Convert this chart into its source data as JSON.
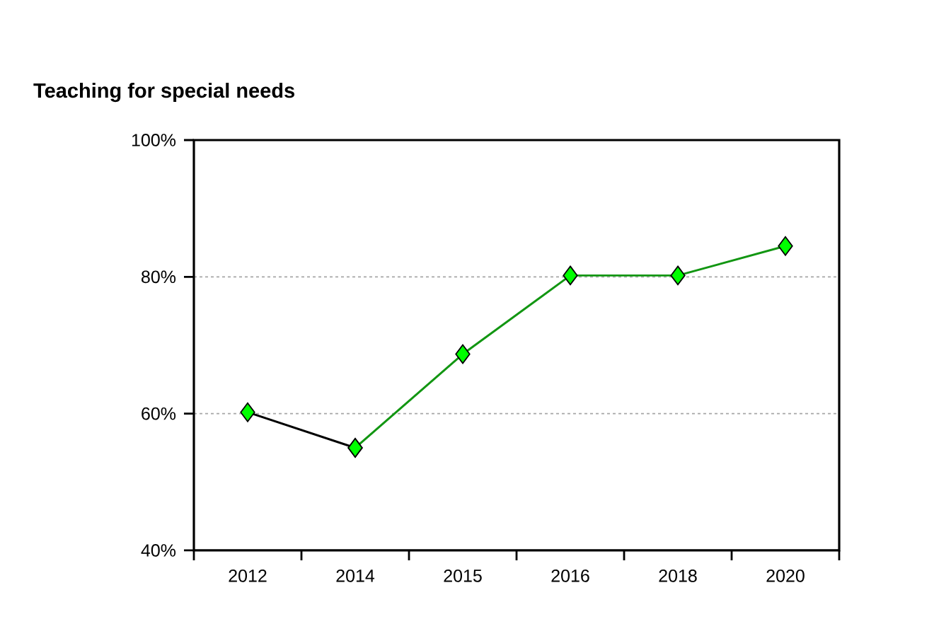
{
  "chart_data": {
    "type": "line",
    "title": "Teaching for special needs",
    "categories": [
      "2012",
      "2014",
      "2015",
      "2016",
      "2018",
      "2020"
    ],
    "series": [
      {
        "color": "#000000",
        "colors": [
          "#00ff00",
          "#00ff00",
          null,
          null,
          null,
          null
        ],
        "values": [
          60.2,
          55,
          null,
          null,
          null,
          null
        ]
      },
      {
        "color": "#129612",
        "colors": [
          null,
          "#00ff00",
          "#00ff00",
          "#00ff00",
          "#00ff00",
          "#00ff00"
        ],
        "values": [
          null,
          55,
          68.7,
          80.2,
          80.2,
          84.5
        ]
      }
    ],
    "ylim": [
      40,
      100
    ],
    "yticks": [
      {
        "value": 40,
        "label": "40%"
      },
      {
        "value": 60,
        "label": "60%"
      },
      {
        "value": 80,
        "label": "80%"
      },
      {
        "value": 100,
        "label": "100%"
      }
    ],
    "grid": "y",
    "marker": "diamond",
    "line_style": "solid"
  }
}
